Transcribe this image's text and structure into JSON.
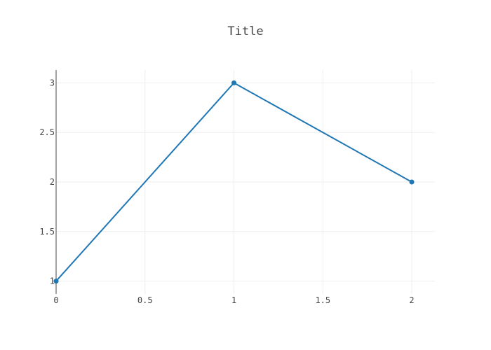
{
  "chart_data": {
    "type": "line",
    "title": "Title",
    "xlabel": "",
    "ylabel": "",
    "x": [
      0,
      1,
      2
    ],
    "series": [
      {
        "values": [
          1,
          3,
          2
        ],
        "color": "#1f77b4",
        "mode": "lines+markers"
      }
    ],
    "xlim": [
      0,
      2.13
    ],
    "ylim": [
      0.87,
      3.13
    ],
    "xticks": [
      0,
      0.5,
      1,
      1.5,
      2
    ],
    "xtick_labels": [
      "0",
      "0.5",
      "1",
      "1.5",
      "2"
    ],
    "yticks": [
      1,
      1.5,
      2,
      2.5,
      3
    ],
    "ytick_labels": [
      "1",
      "1.5",
      "2",
      "2.5",
      "3"
    ],
    "grid": true,
    "legend": "none",
    "background": "#ffffff",
    "grid_color": "#eeeeee",
    "zeroline_color": "#444444",
    "text_color": "#444444"
  }
}
